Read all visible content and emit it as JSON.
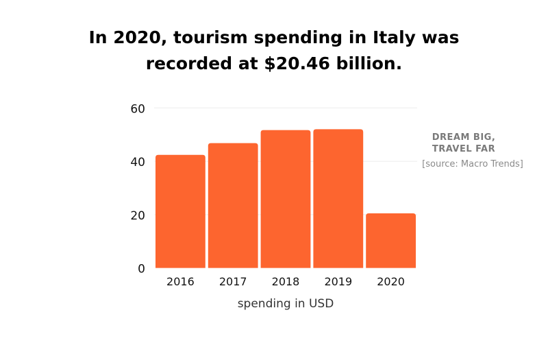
{
  "title_lines": [
    "In 2020, tourism spending in Italy was",
    "recorded at $20.46 billion."
  ],
  "brand_lines": [
    "DREAM BIG,",
    "TRAVEL FAR"
  ],
  "source": "[source: Macro Trends]",
  "chart_data": {
    "type": "bar",
    "title": "In 2020, tourism spending in Italy was recorded at $20.46 billion.",
    "categories": [
      "2016",
      "2017",
      "2018",
      "2019",
      "2020"
    ],
    "values": [
      42.4,
      46.8,
      51.7,
      52.0,
      20.46
    ],
    "xlabel": "spending in USD",
    "ylabel": "",
    "ylim": [
      0,
      60
    ],
    "yticks": [
      0,
      20,
      40,
      60
    ],
    "grid": true,
    "bar_color": "#fd652f"
  }
}
